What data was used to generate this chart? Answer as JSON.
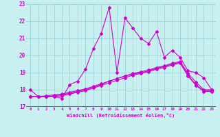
{
  "xlabel": "Windchill (Refroidissement éolien,°C)",
  "background_color": "#c8f0f0",
  "grid_color": "#a0d8dc",
  "line_color": "#cc00cc",
  "xlim": [
    -0.5,
    23.5
  ],
  "ylim": [
    17.0,
    23.0
  ],
  "yticks": [
    17,
    18,
    19,
    20,
    21,
    22,
    23
  ],
  "xticks": [
    0,
    1,
    2,
    3,
    4,
    5,
    6,
    7,
    8,
    9,
    10,
    11,
    12,
    13,
    14,
    15,
    16,
    17,
    18,
    19,
    20,
    21,
    22,
    23
  ],
  "line1_x": [
    0,
    1,
    2,
    3,
    4,
    5,
    6,
    7,
    8,
    9,
    10,
    11,
    12,
    13,
    14,
    15,
    16,
    17,
    18,
    19,
    20,
    21,
    22,
    23
  ],
  "line1_y": [
    18.0,
    17.6,
    17.6,
    17.6,
    17.5,
    18.3,
    18.5,
    19.2,
    20.4,
    21.3,
    22.8,
    19.0,
    22.2,
    21.6,
    21.0,
    20.7,
    21.4,
    19.9,
    20.3,
    19.9,
    19.1,
    19.0,
    18.7,
    18.0
  ],
  "line2_x": [
    0,
    1,
    2,
    3,
    4,
    5,
    6,
    7,
    8,
    9,
    10,
    11,
    12,
    13,
    14,
    15,
    16,
    17,
    18,
    19,
    20,
    21,
    22,
    23
  ],
  "line2_y": [
    17.6,
    17.6,
    17.65,
    17.7,
    17.75,
    17.85,
    17.95,
    18.05,
    18.2,
    18.35,
    18.5,
    18.65,
    18.8,
    18.95,
    19.05,
    19.15,
    19.3,
    19.4,
    19.55,
    19.65,
    18.95,
    18.45,
    18.0,
    18.0
  ],
  "line3_x": [
    0,
    1,
    2,
    3,
    4,
    5,
    6,
    7,
    8,
    9,
    10,
    11,
    12,
    13,
    14,
    15,
    16,
    17,
    18,
    19,
    20,
    21,
    22,
    23
  ],
  "line3_y": [
    17.6,
    17.6,
    17.6,
    17.65,
    17.7,
    17.8,
    17.9,
    18.0,
    18.15,
    18.3,
    18.5,
    18.65,
    18.8,
    18.9,
    19.0,
    19.1,
    19.25,
    19.35,
    19.5,
    19.6,
    18.85,
    18.3,
    17.95,
    17.95
  ],
  "line4_x": [
    0,
    1,
    2,
    3,
    4,
    5,
    6,
    7,
    8,
    9,
    10,
    11,
    12,
    13,
    14,
    15,
    16,
    17,
    18,
    19,
    20,
    21,
    22,
    23
  ],
  "line4_y": [
    17.6,
    17.6,
    17.6,
    17.6,
    17.65,
    17.75,
    17.85,
    17.95,
    18.1,
    18.25,
    18.4,
    18.55,
    18.7,
    18.85,
    18.95,
    19.05,
    19.2,
    19.3,
    19.45,
    19.55,
    18.8,
    18.25,
    17.9,
    17.9
  ]
}
